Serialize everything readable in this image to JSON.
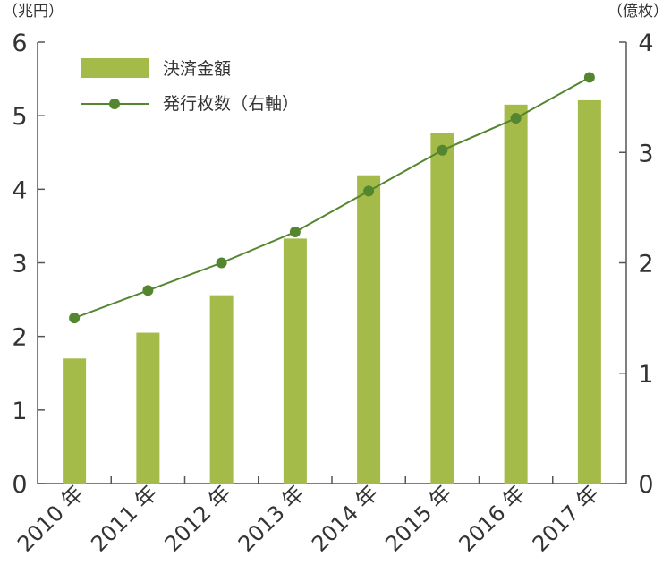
{
  "chart_data": {
    "type": "bar+line",
    "categories": [
      "2010 年",
      "2011 年",
      "2012 年",
      "2013 年",
      "2014 年",
      "2015 年",
      "2016 年",
      "2017 年"
    ],
    "series": [
      {
        "name": "決済金額",
        "type": "bar",
        "axis": "left",
        "values": [
          1.7,
          2.05,
          2.56,
          3.33,
          4.19,
          4.77,
          5.15,
          5.21
        ]
      },
      {
        "name": "発行枚数（右軸）",
        "type": "line",
        "axis": "right",
        "values": [
          1.5,
          1.75,
          2.0,
          2.28,
          2.65,
          3.02,
          3.31,
          3.68
        ]
      }
    ],
    "left_axis": {
      "unit": "（兆円）",
      "ylim": [
        0,
        6
      ],
      "ticks": [
        "0",
        "1",
        "2",
        "3",
        "4",
        "5",
        "6"
      ]
    },
    "right_axis": {
      "unit": "（億枚）",
      "ylim": [
        0,
        4
      ],
      "ticks": [
        "0",
        "1",
        "2",
        "3",
        "4"
      ]
    },
    "legend_position": "top-left",
    "grid": false,
    "colors": {
      "bar": "#a4bb4a",
      "line": "#53862f",
      "axis": "#555555"
    }
  }
}
